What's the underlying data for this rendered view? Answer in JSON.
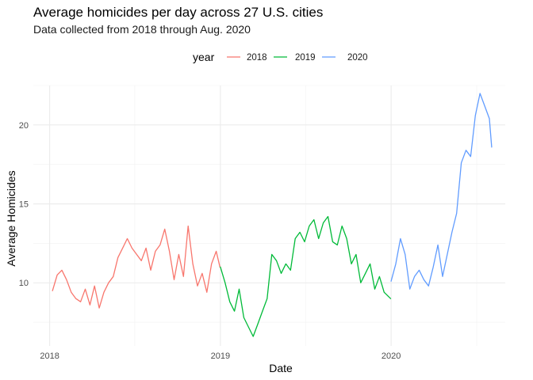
{
  "chart_data": {
    "type": "line",
    "title": "Average homicides per day across 27 U.S. cities",
    "subtitle": "Data collected from 2018 through Aug. 2020",
    "xlabel": "Date",
    "ylabel": "Average Homicides",
    "x_ticks": [
      "2018",
      "2019",
      "2020"
    ],
    "y_ticks": [
      10,
      15,
      20
    ],
    "xlim": [
      "2017-11-27",
      "2020-09-01"
    ],
    "ylim": [
      6.0,
      22.5
    ],
    "grid": true,
    "legend": {
      "title": "year",
      "position": "top"
    },
    "colors": {
      "2018": "#F8766D",
      "2019": "#00BA38",
      "2020": "#619CFF"
    },
    "series": [
      {
        "name": "2018",
        "x": [
          "2018-01-07",
          "2018-01-17",
          "2018-01-27",
          "2018-02-06",
          "2018-02-16",
          "2018-02-26",
          "2018-03-08",
          "2018-03-18",
          "2018-03-28",
          "2018-04-07",
          "2018-04-17",
          "2018-04-27",
          "2018-05-07",
          "2018-05-17",
          "2018-05-27",
          "2018-06-06",
          "2018-06-16",
          "2018-06-26",
          "2018-07-06",
          "2018-07-16",
          "2018-07-26",
          "2018-08-05",
          "2018-08-15",
          "2018-08-25",
          "2018-09-04",
          "2018-09-14",
          "2018-09-24",
          "2018-10-04",
          "2018-10-14",
          "2018-10-24",
          "2018-11-03",
          "2018-11-13",
          "2018-11-23",
          "2018-12-03",
          "2018-12-13",
          "2018-12-23",
          "2018-12-31"
        ],
        "values": [
          9.5,
          10.5,
          10.8,
          10.2,
          9.4,
          9.0,
          8.8,
          9.6,
          8.6,
          9.8,
          8.4,
          9.4,
          10.0,
          10.4,
          11.6,
          12.2,
          12.8,
          12.2,
          11.8,
          11.4,
          12.2,
          10.8,
          12.0,
          12.4,
          13.4,
          12.0,
          10.2,
          11.8,
          10.4,
          13.6,
          11.2,
          9.8,
          10.6,
          9.4,
          11.2,
          12.0,
          11.0
        ]
      },
      {
        "name": "2019",
        "x": [
          "2019-01-01",
          "2019-01-11",
          "2019-01-21",
          "2019-01-31",
          "2019-02-10",
          "2019-02-20",
          "2019-03-02",
          "2019-03-12",
          "2019-03-22",
          "2019-04-01",
          "2019-04-11",
          "2019-04-21",
          "2019-05-01",
          "2019-05-11",
          "2019-05-21",
          "2019-05-31",
          "2019-06-10",
          "2019-06-20",
          "2019-06-30",
          "2019-07-10",
          "2019-07-20",
          "2019-07-30",
          "2019-08-09",
          "2019-08-19",
          "2019-08-29",
          "2019-09-08",
          "2019-09-18",
          "2019-09-28",
          "2019-10-08",
          "2019-10-18",
          "2019-10-28",
          "2019-11-07",
          "2019-11-17",
          "2019-11-27",
          "2019-12-07",
          "2019-12-17",
          "2019-12-31"
        ],
        "values": [
          11.0,
          10.0,
          8.8,
          8.2,
          9.6,
          7.8,
          7.2,
          6.6,
          7.4,
          8.2,
          9.0,
          11.8,
          11.4,
          10.6,
          11.2,
          10.8,
          12.8,
          13.2,
          12.6,
          13.6,
          14.0,
          12.8,
          13.8,
          14.2,
          12.6,
          12.4,
          13.6,
          12.8,
          11.2,
          11.8,
          10.0,
          10.6,
          11.2,
          9.6,
          10.4,
          9.4,
          9.0
        ]
      },
      {
        "name": "2020",
        "x": [
          "2020-01-01",
          "2020-01-11",
          "2020-01-21",
          "2020-01-31",
          "2020-02-10",
          "2020-02-20",
          "2020-03-01",
          "2020-03-11",
          "2020-03-21",
          "2020-03-31",
          "2020-04-10",
          "2020-04-20",
          "2020-04-30",
          "2020-05-10",
          "2020-05-20",
          "2020-05-30",
          "2020-06-09",
          "2020-06-19",
          "2020-06-29",
          "2020-07-09",
          "2020-07-19",
          "2020-07-29",
          "2020-08-03"
        ],
        "values": [
          10.1,
          11.2,
          12.8,
          11.8,
          9.6,
          10.4,
          10.8,
          10.2,
          9.8,
          11.0,
          12.4,
          10.4,
          11.8,
          13.2,
          14.4,
          17.6,
          18.4,
          18.0,
          20.6,
          22.0,
          21.2,
          20.4,
          18.6
        ]
      }
    ]
  }
}
